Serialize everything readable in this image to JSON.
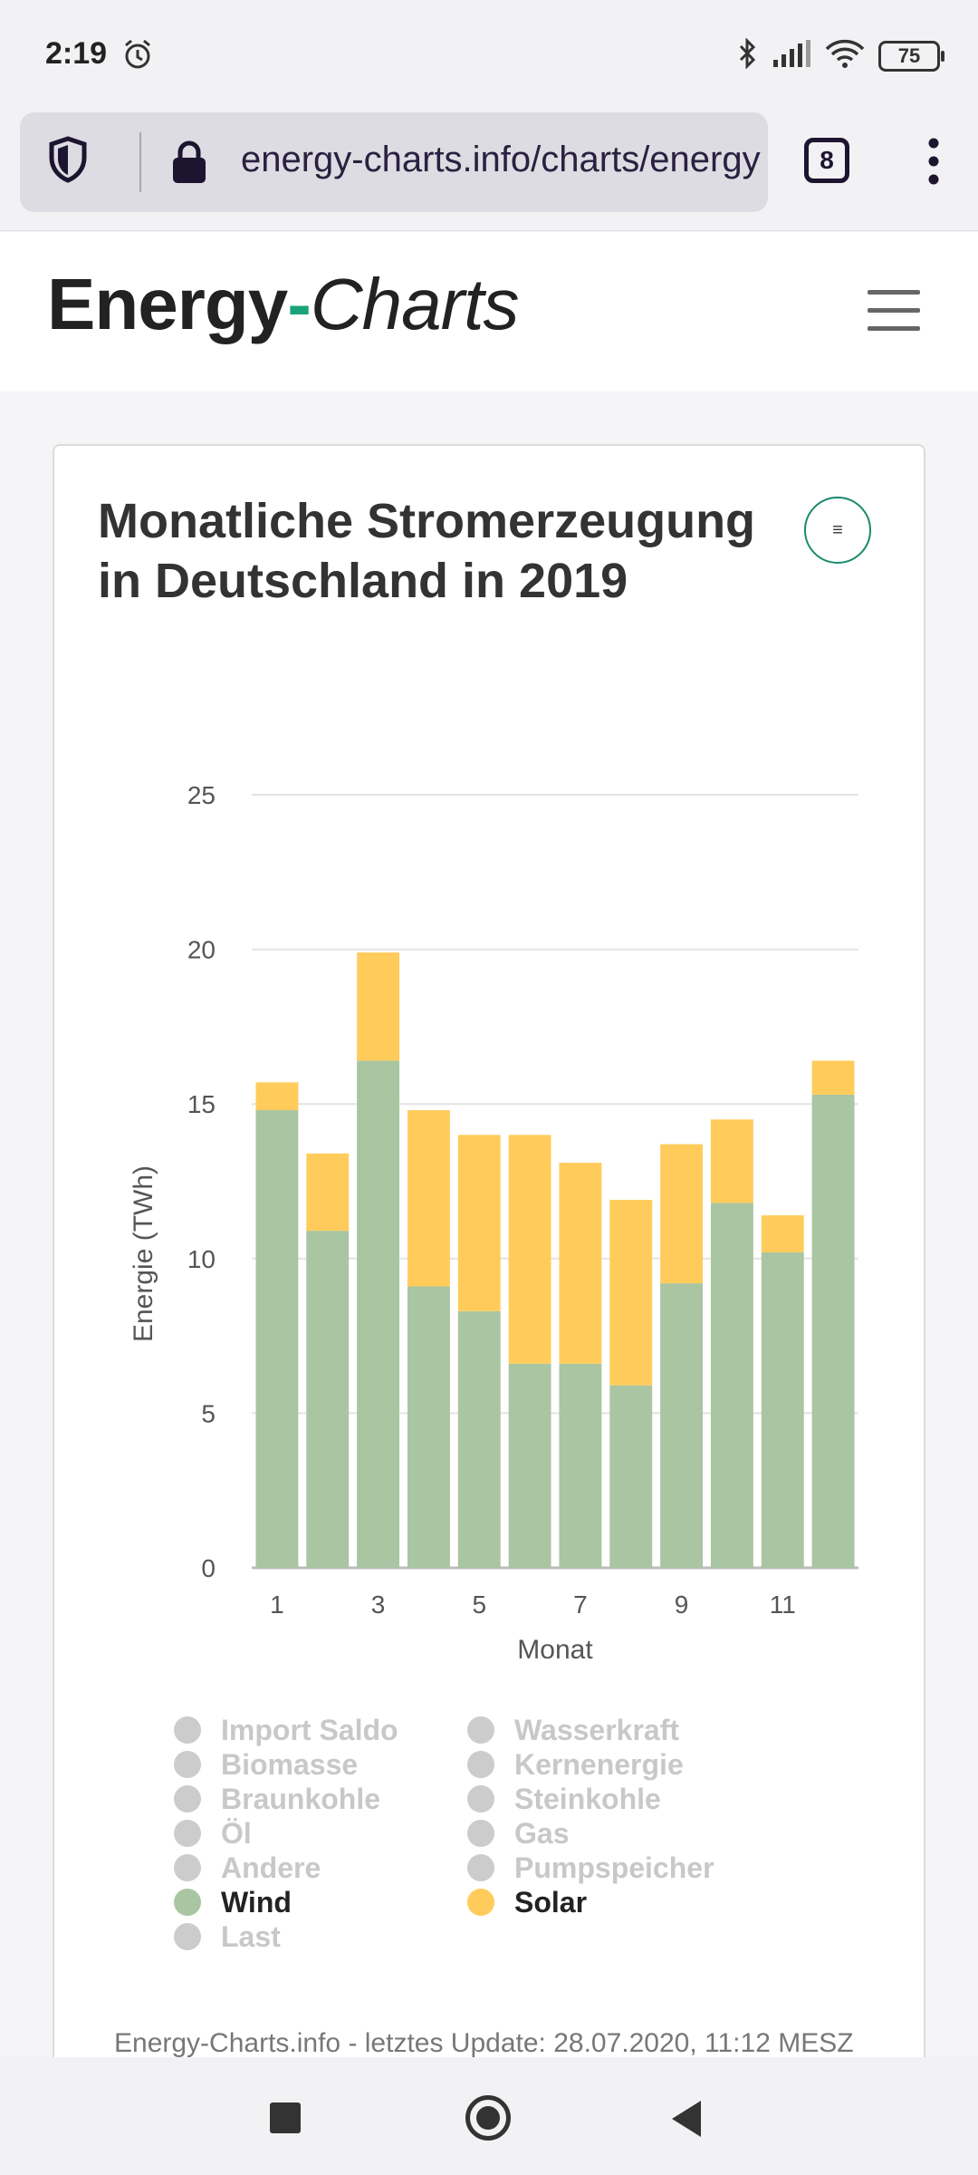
{
  "status_bar": {
    "time": "2:19",
    "battery": "75"
  },
  "browser": {
    "url": "energy-charts.info/charts/energy",
    "tab_count": "8"
  },
  "site": {
    "logo_part1": "Energy",
    "logo_dash": "-",
    "logo_part2": "Charts"
  },
  "card": {
    "export_label": "≡"
  },
  "chart_data": {
    "type": "bar",
    "stacked": true,
    "title": "Monatliche Stromerzeugung in Deutschland in 2019",
    "xlabel": "Monat",
    "ylabel": "Energie (TWh)",
    "ylim": [
      0,
      25
    ],
    "yticks": [
      0,
      5,
      10,
      15,
      20,
      25
    ],
    "xticks": [
      "1",
      "3",
      "5",
      "7",
      "9",
      "11"
    ],
    "categories": [
      1,
      2,
      3,
      4,
      5,
      6,
      7,
      8,
      9,
      10,
      11,
      12
    ],
    "series": [
      {
        "name": "Wind",
        "color": "#a9c5a2",
        "values": [
          14.8,
          10.9,
          16.4,
          9.1,
          8.3,
          6.6,
          6.6,
          5.9,
          9.2,
          11.8,
          10.2,
          15.3
        ]
      },
      {
        "name": "Solar",
        "color": "#ffcc5c",
        "values": [
          0.9,
          2.5,
          3.5,
          5.7,
          5.7,
          7.4,
          6.5,
          6.0,
          4.5,
          2.7,
          1.2,
          1.1
        ]
      }
    ]
  },
  "legend": {
    "left": [
      {
        "label": "Import Saldo",
        "active": false
      },
      {
        "label": "Biomasse",
        "active": false
      },
      {
        "label": "Braunkohle",
        "active": false
      },
      {
        "label": "Öl",
        "active": false
      },
      {
        "label": "Andere",
        "active": false
      },
      {
        "label": "Wind",
        "active": true,
        "color": "#a9c5a2"
      },
      {
        "label": "Last",
        "active": false
      }
    ],
    "right": [
      {
        "label": "Wasserkraft",
        "active": false
      },
      {
        "label": "Kernenergie",
        "active": false
      },
      {
        "label": "Steinkohle",
        "active": false
      },
      {
        "label": "Gas",
        "active": false
      },
      {
        "label": "Pumpspeicher",
        "active": false
      },
      {
        "label": "Solar",
        "active": true,
        "color": "#ffcc5c"
      }
    ]
  },
  "footer": {
    "text": "Energy-Charts.info - letztes Update: 28.07.2020, 11:12 MESZ"
  }
}
